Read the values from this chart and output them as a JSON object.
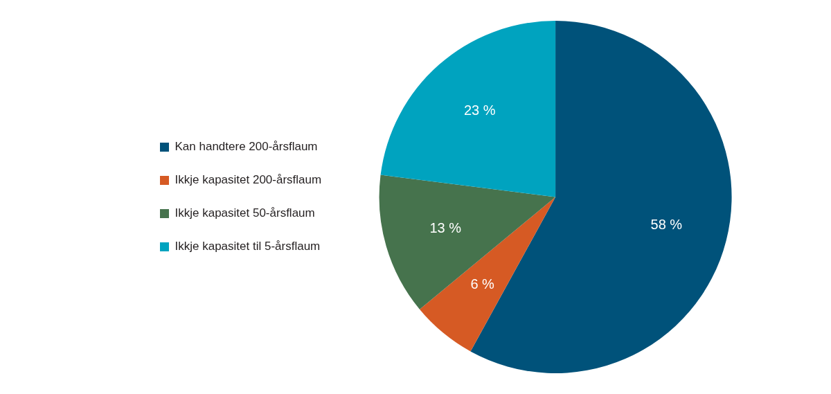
{
  "chart_data": {
    "type": "pie",
    "categories": [
      "Kan handtere 200-årsflaum",
      "Ikkje kapasitet 200-årsflaum",
      "Ikkje kapasitet 50-årsflaum",
      "Ikkje kapasitet til 5-årsflaum"
    ],
    "values": [
      58,
      6,
      13,
      23
    ],
    "colors": [
      "#00527a",
      "#d65a24",
      "#46734d",
      "#00a3bf"
    ],
    "value_labels": [
      "58 %",
      "6 %",
      "13 %",
      "23 %"
    ],
    "legend": "left"
  }
}
